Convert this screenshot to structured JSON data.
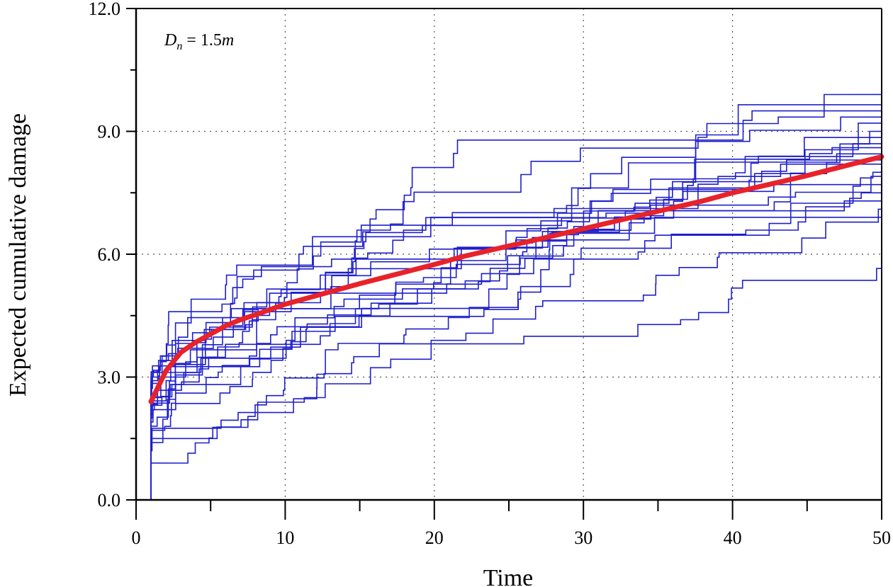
{
  "chart_data": {
    "type": "line",
    "xlabel": "Time",
    "ylabel": "Expected cumulative damage",
    "xlim": [
      0,
      50
    ],
    "ylim": [
      0,
      12
    ],
    "xticks": [
      0,
      10,
      20,
      30,
      40,
      50
    ],
    "xtick_labels": [
      "0",
      "10",
      "20",
      "30",
      "40",
      "50"
    ],
    "yticks": [
      0,
      3,
      6,
      9,
      12
    ],
    "ytick_labels": [
      "0.0",
      "3.0",
      "6.0",
      "9.0",
      "12.0"
    ],
    "grid": "dotted",
    "annotation": {
      "symbol": "D",
      "subscript": "n",
      "equals": " = 1.5",
      "unit": "m"
    },
    "simulated_paths": {
      "style": "step",
      "color": "#1f1fcc",
      "x_start": 1,
      "x_end": 50,
      "count": 20,
      "final_values": [
        5.65,
        6.9,
        7.1,
        7.3,
        7.5,
        7.7,
        7.9,
        8.0,
        8.2,
        8.3,
        8.45,
        8.6,
        8.7,
        8.85,
        9.0,
        9.2,
        9.35,
        9.5,
        9.65,
        9.9
      ],
      "start_values": [
        0.9,
        1.2,
        1.5,
        1.7,
        1.9,
        2.0,
        2.2,
        2.3,
        2.5,
        2.6,
        2.7,
        2.8,
        2.9,
        3.0,
        2.4,
        1.4,
        2.1,
        2.6,
        1.8,
        2.5
      ]
    },
    "series": [
      {
        "color": "#e8222a",
        "x": [
          1,
          2,
          3,
          4,
          5,
          6,
          7,
          8,
          10,
          12,
          15,
          18,
          20,
          22,
          25,
          28,
          30,
          33,
          35,
          38,
          40,
          43,
          45,
          48,
          50
        ],
        "values": [
          2.4,
          3.15,
          3.6,
          3.85,
          4.05,
          4.25,
          4.4,
          4.52,
          4.78,
          4.98,
          5.28,
          5.56,
          5.75,
          5.95,
          6.2,
          6.45,
          6.62,
          6.88,
          7.05,
          7.3,
          7.5,
          7.75,
          7.92,
          8.2,
          8.38
        ]
      }
    ]
  }
}
